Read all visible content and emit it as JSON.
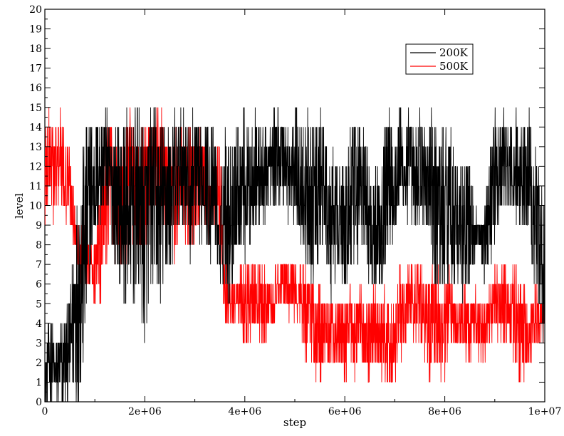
{
  "chart_data": {
    "type": "line",
    "title": "",
    "xlabel": "step",
    "ylabel": "level",
    "xlim": [
      0,
      10000000
    ],
    "ylim": [
      0,
      20
    ],
    "x_ticks": [
      0,
      2000000,
      4000000,
      6000000,
      8000000,
      10000000
    ],
    "x_tick_labels": [
      "0",
      "2e+06",
      "4e+06",
      "6e+06",
      "8e+06",
      "1e+07"
    ],
    "y_ticks": [
      0,
      1,
      2,
      3,
      4,
      5,
      6,
      7,
      8,
      9,
      10,
      11,
      12,
      13,
      14,
      15,
      16,
      17,
      18,
      19,
      20
    ],
    "y_tick_labels": [
      "0",
      "1",
      "2",
      "3",
      "4",
      "5",
      "6",
      "7",
      "8",
      "9",
      "10",
      "11",
      "12",
      "13",
      "14",
      "15",
      "16",
      "17",
      "18",
      "19",
      "20"
    ],
    "grid": false,
    "legend_position": "top-right",
    "series": [
      {
        "name": "200K",
        "color": "#000000",
        "sampling_note": "approximate envelope; dense noisy trace",
        "x": [
          0,
          100000,
          200000,
          300000,
          400000,
          500000,
          600000,
          700000,
          800000,
          900000,
          1000000,
          1100000,
          1200000,
          1300000,
          1400000,
          1500000,
          1600000,
          1700000,
          1800000,
          1900000,
          2000000,
          2100000,
          2200000,
          2300000,
          2400000,
          2500000,
          2600000,
          2700000,
          2800000,
          2900000,
          3000000,
          3100000,
          3200000,
          3300000,
          3400000,
          3500000,
          3600000,
          3700000,
          3800000,
          3900000,
          4000000,
          4100000,
          4200000,
          4300000,
          4400000,
          4500000,
          4600000,
          4700000,
          4800000,
          4900000,
          5000000,
          5100000,
          5200000,
          5300000,
          5400000,
          5500000,
          5600000,
          5700000,
          5800000,
          5900000,
          6000000,
          6100000,
          6200000,
          6300000,
          6400000,
          6500000,
          6600000,
          6700000,
          6800000,
          6900000,
          7000000,
          7100000,
          7200000,
          7300000,
          7400000,
          7500000,
          7600000,
          7700000,
          7800000,
          7900000,
          8000000,
          8100000,
          8200000,
          8300000,
          8400000,
          8500000,
          8600000,
          8700000,
          8800000,
          8900000,
          9000000,
          9100000,
          9200000,
          9300000,
          9400000,
          9500000,
          9600000,
          9700000,
          9800000,
          9900000,
          10000000
        ],
        "upper": [
          2,
          5,
          3,
          4,
          4,
          6,
          10,
          12,
          14,
          15,
          14,
          15,
          15,
          14,
          14,
          14,
          15,
          14,
          15,
          15,
          14,
          15,
          15,
          14,
          15,
          14,
          15,
          15,
          15,
          14,
          15,
          14,
          15,
          14,
          14,
          9,
          15,
          13,
          15,
          14,
          15,
          14,
          15,
          14,
          14,
          14,
          15,
          15,
          15,
          14,
          15,
          15,
          14,
          15,
          14,
          15,
          14,
          12,
          13,
          12,
          13,
          14,
          14,
          14,
          14,
          12,
          12,
          13,
          14,
          15,
          14,
          15,
          14,
          15,
          14,
          15,
          14,
          15,
          14,
          15,
          14,
          15,
          13,
          12,
          12,
          13,
          10,
          9,
          10,
          14,
          15,
          14,
          15,
          14,
          15,
          14,
          15,
          15,
          13,
          12,
          10
        ],
        "lower": [
          0,
          0,
          0,
          0,
          0,
          0,
          0,
          0,
          2,
          6,
          8,
          9,
          10,
          9,
          7,
          6,
          5,
          5,
          5,
          5,
          3,
          5,
          6,
          5,
          6,
          6,
          8,
          9,
          9,
          7,
          9,
          8,
          9,
          7,
          8,
          6,
          6,
          5,
          7,
          8,
          7,
          8,
          9,
          9,
          9,
          10,
          10,
          10,
          10,
          9,
          9,
          8,
          7,
          6,
          6,
          7,
          8,
          5,
          6,
          7,
          5,
          6,
          6,
          8,
          7,
          6,
          6,
          5,
          7,
          8,
          8,
          10,
          9,
          9,
          8,
          9,
          9,
          7,
          6,
          5,
          6,
          6,
          6,
          6,
          5,
          6,
          7,
          8,
          6,
          7,
          8,
          9,
          10,
          9,
          9,
          9,
          9,
          8,
          6,
          5,
          2
        ]
      },
      {
        "name": "500K",
        "color": "#ff0000",
        "sampling_note": "approximate envelope; dense noisy trace",
        "x": [
          0,
          100000,
          200000,
          300000,
          400000,
          500000,
          600000,
          700000,
          800000,
          900000,
          1000000,
          1100000,
          1200000,
          1300000,
          1400000,
          1500000,
          1600000,
          1700000,
          1800000,
          1900000,
          2000000,
          2100000,
          2200000,
          2300000,
          2400000,
          2500000,
          2600000,
          2700000,
          2800000,
          2900000,
          3000000,
          3100000,
          3200000,
          3300000,
          3400000,
          3500000,
          3600000,
          3700000,
          3800000,
          3900000,
          4000000,
          4100000,
          4200000,
          4300000,
          4400000,
          4500000,
          4600000,
          4700000,
          4800000,
          4900000,
          5000000,
          5100000,
          5200000,
          5300000,
          5400000,
          5500000,
          5600000,
          5700000,
          5800000,
          5900000,
          6000000,
          6100000,
          6200000,
          6300000,
          6400000,
          6500000,
          6600000,
          6700000,
          6800000,
          6900000,
          7000000,
          7100000,
          7200000,
          7300000,
          7400000,
          7500000,
          7600000,
          7700000,
          7800000,
          7900000,
          8000000,
          8100000,
          8200000,
          8300000,
          8400000,
          8500000,
          8600000,
          8700000,
          8800000,
          8900000,
          9000000,
          9100000,
          9200000,
          9300000,
          9400000,
          9500000,
          9600000,
          9700000,
          9800000,
          9900000,
          10000000
        ],
        "upper": [
          15,
          15,
          14,
          15,
          14,
          13,
          10,
          9,
          10,
          8,
          8,
          12,
          14,
          15,
          13,
          13,
          14,
          15,
          14,
          13,
          15,
          14,
          15,
          15,
          14,
          13,
          14,
          14,
          14,
          14,
          13,
          14,
          13,
          12,
          13,
          14,
          7,
          6,
          6,
          7,
          7,
          7,
          7,
          7,
          7,
          6,
          7,
          7,
          7,
          7,
          7,
          7,
          7,
          7,
          6,
          6,
          5,
          6,
          5,
          6,
          5,
          6,
          5,
          6,
          5,
          5,
          6,
          5,
          6,
          5,
          5,
          7,
          6,
          7,
          7,
          7,
          7,
          7,
          7,
          7,
          6,
          7,
          5,
          5,
          6,
          5,
          6,
          5,
          5,
          6,
          7,
          7,
          7,
          6,
          7,
          7,
          6,
          5,
          6,
          5,
          5
        ],
        "lower": [
          8,
          10,
          9,
          10,
          9,
          9,
          8,
          6,
          6,
          6,
          5,
          4,
          7,
          8,
          7,
          7,
          7,
          7,
          8,
          7,
          8,
          9,
          8,
          9,
          8,
          9,
          7,
          9,
          8,
          7,
          8,
          9,
          9,
          8,
          9,
          8,
          4,
          4,
          4,
          4,
          2,
          3,
          4,
          3,
          3,
          4,
          4,
          5,
          5,
          4,
          4,
          4,
          2,
          3,
          1,
          1,
          2,
          2,
          1,
          2,
          1,
          2,
          1,
          2,
          1,
          1,
          2,
          1,
          1,
          1,
          1,
          2,
          3,
          4,
          3,
          3,
          2,
          1,
          2,
          1,
          1,
          3,
          3,
          3,
          2,
          2,
          3,
          2,
          2,
          3,
          3,
          3,
          3,
          3,
          2,
          1,
          1,
          2,
          3,
          3,
          3
        ]
      }
    ]
  }
}
